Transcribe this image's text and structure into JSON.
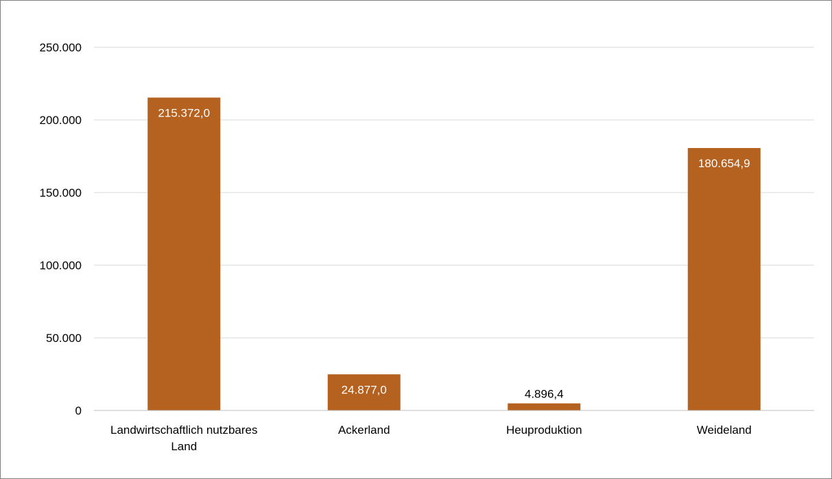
{
  "chart_data": {
    "type": "bar",
    "title": "",
    "xlabel": "",
    "ylabel": "",
    "categories": [
      "Landwirtschaftlich nutzbares Land",
      "Ackerland",
      "Heuproduktion",
      "Weideland"
    ],
    "category_label_lines": [
      [
        "Landwirtschaftlich nutzbares",
        "Land"
      ],
      [
        "Ackerland"
      ],
      [
        "Heuproduktion"
      ],
      [
        "Weideland"
      ]
    ],
    "values": [
      215372.0,
      24877.0,
      4896.4,
      180654.9
    ],
    "data_labels": [
      "215.372,0",
      "24.877,0",
      "4.896,4",
      "180.654,9"
    ],
    "ylim": [
      0,
      250000
    ],
    "y_ticks": [
      0,
      50000,
      100000,
      150000,
      200000,
      250000
    ],
    "y_tick_labels": [
      "0",
      "50.000",
      "100.000",
      "150.000",
      "200.000",
      "250.000"
    ],
    "grid": true,
    "legend": "none",
    "colors": {
      "bar": "#B5611F",
      "grid": "#D9D9D9",
      "axis": "#BFBFBF",
      "label_inside": "#FFFFFF",
      "label_outside": "#000000"
    }
  }
}
